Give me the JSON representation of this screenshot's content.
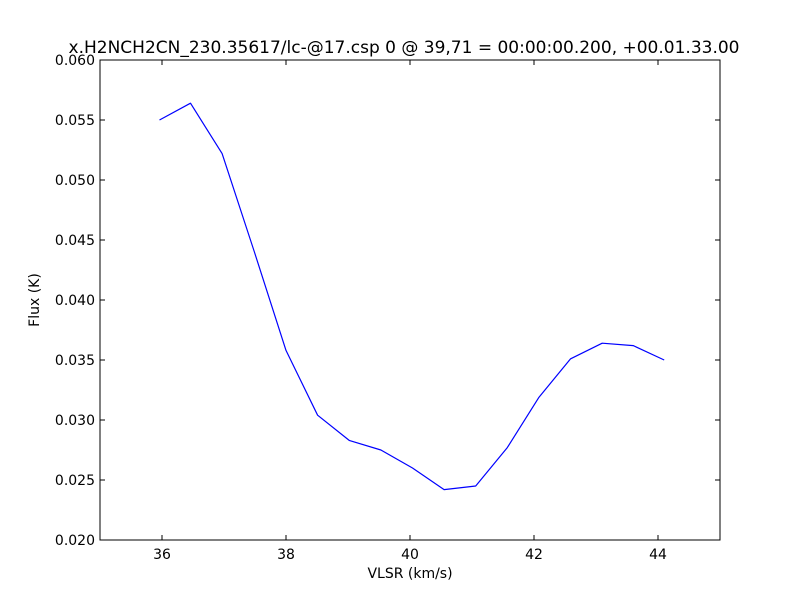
{
  "chart_data": {
    "type": "line",
    "title": "x.H2NCH2CN_230.35617/lc-@17.csp 0 @ 39,71 = 00:00:00.200, +00.01.33.00",
    "xlabel": "VLSR (km/s)",
    "ylabel": "Flux (K)",
    "xlim": [
      35,
      45
    ],
    "ylim": [
      0.02,
      0.06
    ],
    "x_ticks": [
      36,
      38,
      40,
      42,
      44
    ],
    "x_tick_labels": [
      "36",
      "38",
      "40",
      "42",
      "44"
    ],
    "y_ticks": [
      0.02,
      0.025,
      0.03,
      0.035,
      0.04,
      0.045,
      0.05,
      0.055,
      0.06
    ],
    "y_tick_labels": [
      "0.020",
      "0.025",
      "0.030",
      "0.035",
      "0.040",
      "0.045",
      "0.050",
      "0.055",
      "0.060"
    ],
    "grid": false,
    "legend": "none",
    "series": [
      {
        "color": "#0000ff",
        "x": [
          35.96,
          36.46,
          36.97,
          37.49,
          38.0,
          38.51,
          39.02,
          39.53,
          40.04,
          40.55,
          41.06,
          41.57,
          42.08,
          42.59,
          43.1,
          43.6,
          44.1
        ],
        "y": [
          0.055,
          0.0564,
          0.0522,
          0.044,
          0.0358,
          0.0304,
          0.0283,
          0.0275,
          0.026,
          0.0242,
          0.0245,
          0.0277,
          0.0319,
          0.0351,
          0.0364,
          0.0362,
          0.035
        ]
      }
    ]
  }
}
